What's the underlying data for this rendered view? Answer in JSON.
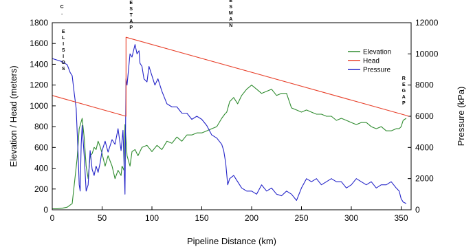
{
  "chart_data": {
    "type": "line",
    "xlabel": "Pipeline Distance (km)",
    "ylabel_left": "Elevation / Head (meters)",
    "ylabel_right": "Pressure (kPa)",
    "xlim": [
      0,
      360
    ],
    "ylim_left": [
      0,
      1800
    ],
    "ylim_right": [
      0,
      12000
    ],
    "x_ticks": [
      0,
      50,
      100,
      150,
      200,
      250,
      300,
      350
    ],
    "y_left_ticks": [
      0,
      200,
      400,
      600,
      800,
      1000,
      1200,
      1400,
      1600,
      1800
    ],
    "y_right_ticks": [
      0,
      2000,
      4000,
      6000,
      8000,
      10000,
      12000
    ],
    "grid": false,
    "legend_position": "top-right",
    "stations": [
      {
        "label": "C.",
        "x": 7
      },
      {
        "label": "ELISIOS",
        "x": 7
      },
      {
        "label": "ESTAP",
        "x": 75
      },
      {
        "label": "ESMAN",
        "x": 175
      },
      {
        "label": "REGAP",
        "x": 354
      }
    ],
    "series": [
      {
        "name": "Elevation",
        "axis": "left",
        "color": "#2e8b2e",
        "x": [
          0,
          5,
          10,
          15,
          20,
          25,
          27,
          30,
          32,
          34,
          36,
          38,
          40,
          42,
          44,
          46,
          48,
          50,
          53,
          56,
          60,
          63,
          66,
          69,
          70,
          72,
          73,
          75,
          78,
          80,
          83,
          86,
          90,
          95,
          100,
          105,
          110,
          115,
          120,
          125,
          130,
          135,
          140,
          145,
          150,
          155,
          160,
          165,
          170,
          173,
          175,
          178,
          182,
          186,
          190,
          195,
          200,
          205,
          210,
          215,
          220,
          225,
          230,
          235,
          240,
          245,
          250,
          255,
          260,
          265,
          270,
          275,
          280,
          285,
          290,
          295,
          300,
          305,
          310,
          315,
          320,
          325,
          330,
          335,
          340,
          345,
          348,
          350,
          352,
          355
        ],
        "values": [
          10,
          10,
          15,
          25,
          60,
          500,
          780,
          880,
          700,
          420,
          300,
          520,
          540,
          600,
          580,
          660,
          610,
          540,
          420,
          520,
          420,
          300,
          380,
          330,
          420,
          380,
          820,
          520,
          420,
          560,
          580,
          520,
          600,
          620,
          560,
          620,
          580,
          660,
          640,
          700,
          660,
          720,
          720,
          740,
          740,
          760,
          780,
          800,
          880,
          920,
          940,
          1040,
          1080,
          1020,
          1100,
          1160,
          1200,
          1160,
          1120,
          1140,
          1160,
          1100,
          1120,
          1120,
          980,
          960,
          940,
          960,
          940,
          920,
          920,
          900,
          900,
          860,
          880,
          860,
          840,
          820,
          840,
          840,
          800,
          780,
          800,
          760,
          760,
          780,
          780,
          800,
          860,
          880
        ]
      },
      {
        "name": "Head",
        "axis": "left",
        "color": "#e8402a",
        "x": [
          0,
          74,
          74,
          358
        ],
        "values": [
          1100,
          900,
          1660,
          900
        ]
      },
      {
        "name": "Pressure",
        "axis": "right",
        "color": "#2323c8",
        "x": [
          0,
          5,
          10,
          15,
          18,
          20,
          22,
          24,
          26,
          27,
          28,
          29,
          30,
          32,
          34,
          36,
          38,
          40,
          42,
          44,
          46,
          48,
          50,
          53,
          56,
          60,
          63,
          66,
          69,
          71,
          73,
          74,
          75,
          78,
          80,
          83,
          85,
          87,
          88,
          90,
          92,
          95,
          97,
          100,
          103,
          106,
          110,
          115,
          120,
          125,
          130,
          135,
          140,
          145,
          150,
          155,
          160,
          165,
          170,
          172,
          174,
          176,
          178,
          182,
          186,
          190,
          195,
          200,
          205,
          210,
          215,
          220,
          225,
          230,
          235,
          240,
          245,
          250,
          255,
          260,
          265,
          270,
          275,
          280,
          285,
          290,
          295,
          300,
          305,
          310,
          315,
          320,
          325,
          330,
          335,
          340,
          345,
          348,
          350,
          352,
          355
        ],
        "values": [
          9700,
          9600,
          9500,
          9300,
          8800,
          8600,
          7500,
          6500,
          3500,
          1600,
          1200,
          4200,
          5400,
          3500,
          1200,
          1600,
          3800,
          2600,
          2200,
          2800,
          2400,
          3000,
          3800,
          4400,
          3700,
          4500,
          4200,
          5200,
          3800,
          5100,
          1000,
          8400,
          8000,
          10000,
          9800,
          10600,
          10000,
          10200,
          9400,
          9200,
          8400,
          8200,
          9200,
          8600,
          8000,
          8400,
          7600,
          6800,
          6600,
          6600,
          6200,
          6200,
          5800,
          6000,
          5800,
          5400,
          4800,
          4600,
          4200,
          3800,
          3000,
          1600,
          2000,
          2200,
          1800,
          1400,
          1200,
          1200,
          1000,
          1600,
          1200,
          1400,
          1000,
          900,
          1200,
          1000,
          600,
          1400,
          2000,
          1800,
          2000,
          1600,
          1800,
          2000,
          1800,
          1800,
          1400,
          1600,
          2000,
          1800,
          1600,
          1800,
          1400,
          1600,
          1600,
          1800,
          1400,
          1200,
          700,
          500,
          400
        ]
      }
    ]
  }
}
